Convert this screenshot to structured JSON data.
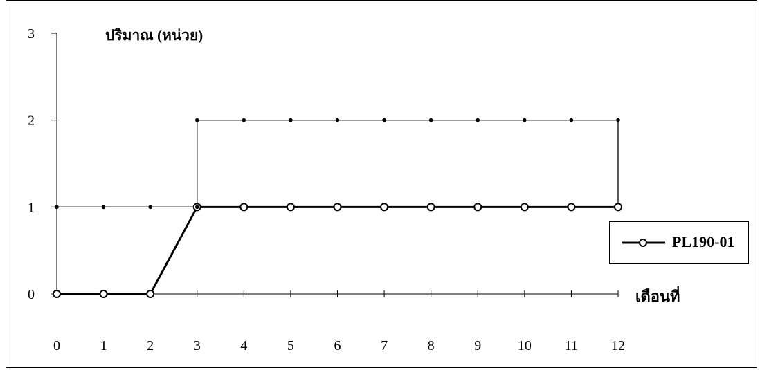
{
  "chart_data": {
    "type": "line",
    "title": "",
    "ylabel": "ปริมาณ (หน่วย)",
    "xlabel": "เดือนที่",
    "x": [
      0,
      1,
      2,
      3,
      4,
      5,
      6,
      7,
      8,
      9,
      10,
      11,
      12
    ],
    "ylim": [
      0,
      3
    ],
    "xlim": [
      0,
      12
    ],
    "y_ticks": [
      0,
      1,
      2,
      3
    ],
    "grid": false,
    "legend_position": "right",
    "series": [
      {
        "name": "PL190-01",
        "values": [
          0,
          0,
          0,
          1,
          1,
          1,
          1,
          1,
          1,
          1,
          1,
          1,
          1
        ],
        "marker": "open-circle",
        "color": "#000000",
        "style": "thick"
      },
      {
        "name": "",
        "values": [
          1,
          1,
          1,
          1,
          null,
          null,
          null,
          null,
          null,
          null,
          null,
          null,
          null
        ],
        "marker": "dot",
        "color": "#000000",
        "style": "thin"
      },
      {
        "name": "",
        "values": [
          null,
          null,
          null,
          2,
          2,
          2,
          2,
          2,
          2,
          2,
          2,
          2,
          2
        ],
        "marker": "dot",
        "color": "#000000",
        "style": "thin"
      }
    ],
    "vertical_segments": [
      {
        "x": 3,
        "from": 1,
        "to": 2
      },
      {
        "x": 12,
        "from": 1,
        "to": 2
      }
    ]
  }
}
